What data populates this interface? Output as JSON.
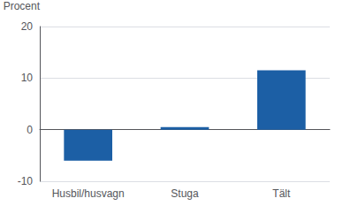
{
  "chart_data": {
    "type": "bar",
    "ylabel": "Procent",
    "categories": [
      "Husbil/husvagn",
      "Stuga",
      "Tält"
    ],
    "values": [
      -6.0,
      0.5,
      11.5
    ],
    "color": "#1c5fa5",
    "ylim": [
      -10,
      20
    ],
    "yticks": [
      -10,
      0,
      10,
      20
    ],
    "grid": true
  }
}
